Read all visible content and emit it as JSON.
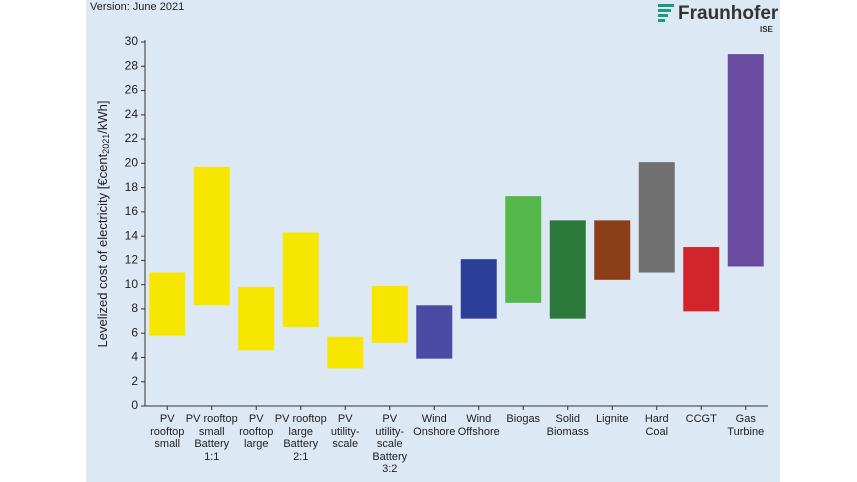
{
  "header": {
    "version": "Version: June 2021",
    "logo": "Fraunhofer",
    "logo_sub": "ISE"
  },
  "chart_data": {
    "type": "floating-bar",
    "y_label": {
      "main": "Levelized cost of electricity [€cent",
      "sub": "2021",
      "end": "/kWh]"
    },
    "categories": [
      "PV\nrooftop\nsmall",
      "PV rooftop\nsmall\nBattery\n1:1",
      "PV\nrooftop\nlarge",
      "PV rooftop\nlarge\nBattery\n2:1",
      "PV\nutility-\nscale",
      "PV\nutility-\nscale\nBattery\n3:2",
      "Wind\nOnshore",
      "Wind\nOffshore",
      "Biogas",
      "Solid\nBiomass",
      "Lignite",
      "Hard\nCoal",
      "CCGT",
      "Gas\nTurbine"
    ],
    "low": [
      5.8,
      8.3,
      4.6,
      6.5,
      3.1,
      5.2,
      3.9,
      7.2,
      8.5,
      7.2,
      10.4,
      11.0,
      7.8,
      11.5
    ],
    "high": [
      11.0,
      19.7,
      9.8,
      14.3,
      5.7,
      9.9,
      8.3,
      12.1,
      17.3,
      15.3,
      15.3,
      20.1,
      13.1,
      29.0
    ],
    "colors": [
      "#f7e600",
      "#f7e600",
      "#f7e600",
      "#f7e600",
      "#f7e600",
      "#f7e600",
      "#4b4ba6",
      "#2c3f98",
      "#55b84a",
      "#2b7a3b",
      "#8b3e18",
      "#717171",
      "#d1242b",
      "#6a4b9f"
    ],
    "ylim": [
      0,
      30
    ],
    "yticks": [
      0,
      2,
      4,
      6,
      8,
      10,
      12,
      14,
      16,
      18,
      20,
      22,
      24,
      26,
      28,
      30
    ]
  }
}
